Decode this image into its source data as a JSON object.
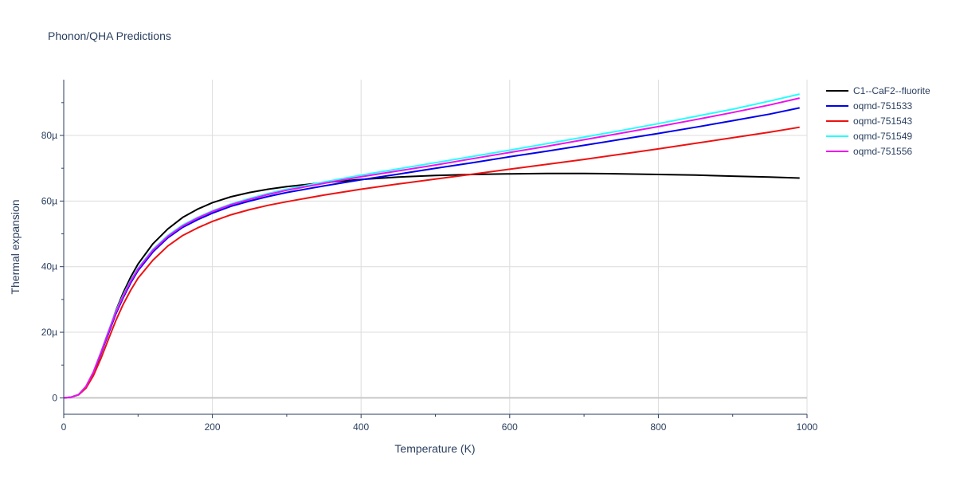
{
  "chart_data": {
    "type": "line",
    "title": "Phonon/QHA Predictions",
    "xlabel": "Temperature (K)",
    "ylabel": "Thermal expansion",
    "xlim": [
      0,
      1000
    ],
    "ylim": [
      -5,
      97
    ],
    "y_unit_note": "values in 1e-6 (µ)",
    "xticks": [
      0,
      200,
      400,
      600,
      800,
      1000
    ],
    "xtick_labels": [
      "0",
      "200",
      "400",
      "600",
      "800",
      "1000"
    ],
    "yticks": [
      0,
      20,
      40,
      60,
      80
    ],
    "ytick_labels": [
      "0",
      "20µ",
      "40µ",
      "60µ",
      "80µ"
    ],
    "grid": true,
    "legend_position": "top-right",
    "series": [
      {
        "name": "C1--CaF2--fluorite",
        "color": "#000000",
        "x": [
          0,
          10,
          20,
          30,
          40,
          50,
          60,
          70,
          80,
          90,
          100,
          120,
          140,
          160,
          180,
          200,
          225,
          250,
          275,
          300,
          350,
          400,
          450,
          500,
          550,
          600,
          650,
          700,
          750,
          800,
          850,
          900,
          950,
          990
        ],
        "y": [
          0,
          0.2,
          1.0,
          3.3,
          7.5,
          13.5,
          20.0,
          26.5,
          32.0,
          36.8,
          40.8,
          47.0,
          51.5,
          55.0,
          57.5,
          59.5,
          61.3,
          62.6,
          63.6,
          64.4,
          65.6,
          66.6,
          67.3,
          67.8,
          68.1,
          68.3,
          68.4,
          68.4,
          68.3,
          68.1,
          67.9,
          67.6,
          67.3,
          67.0
        ]
      },
      {
        "name": "oqmd-751533",
        "color": "#0000ee",
        "x": [
          0,
          10,
          20,
          30,
          40,
          50,
          60,
          70,
          80,
          90,
          100,
          120,
          140,
          160,
          180,
          200,
          225,
          250,
          275,
          300,
          350,
          400,
          450,
          500,
          550,
          600,
          650,
          700,
          750,
          800,
          850,
          900,
          950,
          990
        ],
        "y": [
          0,
          0.2,
          1.0,
          3.5,
          7.8,
          13.5,
          19.5,
          25.5,
          30.5,
          35.0,
          38.8,
          44.5,
          48.8,
          52.0,
          54.3,
          56.3,
          58.4,
          60.0,
          61.4,
          62.6,
          64.6,
          66.5,
          68.2,
          70.0,
          71.7,
          73.5,
          75.2,
          77.0,
          78.8,
          80.6,
          82.5,
          84.5,
          86.5,
          88.4
        ]
      },
      {
        "name": "oqmd-751543",
        "color": "#ee1111",
        "x": [
          0,
          10,
          20,
          30,
          40,
          50,
          60,
          70,
          80,
          90,
          100,
          120,
          140,
          160,
          180,
          200,
          225,
          250,
          275,
          300,
          350,
          400,
          450,
          500,
          550,
          600,
          650,
          700,
          750,
          800,
          850,
          900,
          950,
          990
        ],
        "y": [
          0,
          0.2,
          0.9,
          3.0,
          6.8,
          12.0,
          17.8,
          23.5,
          28.5,
          32.8,
          36.5,
          42.0,
          46.3,
          49.5,
          51.8,
          53.8,
          55.8,
          57.4,
          58.7,
          59.8,
          61.8,
          63.6,
          65.2,
          66.7,
          68.2,
          69.7,
          71.2,
          72.7,
          74.3,
          75.9,
          77.6,
          79.3,
          81.0,
          82.5
        ]
      },
      {
        "name": "oqmd-751549",
        "color": "#22ffff",
        "x": [
          0,
          10,
          20,
          30,
          40,
          50,
          60,
          70,
          80,
          90,
          100,
          120,
          140,
          160,
          180,
          200,
          225,
          250,
          275,
          300,
          350,
          400,
          450,
          500,
          550,
          600,
          650,
          700,
          750,
          800,
          850,
          900,
          950,
          990
        ],
        "y": [
          0,
          0.2,
          1.0,
          3.6,
          8.0,
          14.0,
          20.3,
          26.3,
          31.3,
          35.8,
          39.6,
          45.3,
          49.5,
          52.7,
          55.0,
          57.0,
          59.1,
          60.8,
          62.3,
          63.6,
          65.8,
          67.9,
          69.8,
          71.7,
          73.6,
          75.5,
          77.5,
          79.5,
          81.5,
          83.6,
          85.8,
          88.0,
          90.5,
          92.6
        ]
      },
      {
        "name": "oqmd-751556",
        "color": "#ee11ee",
        "x": [
          0,
          10,
          20,
          30,
          40,
          50,
          60,
          70,
          80,
          90,
          100,
          120,
          140,
          160,
          180,
          200,
          225,
          250,
          275,
          300,
          350,
          400,
          450,
          500,
          550,
          600,
          650,
          700,
          750,
          800,
          850,
          900,
          950,
          990
        ],
        "y": [
          0,
          0.2,
          1.0,
          3.5,
          7.9,
          13.8,
          20.0,
          26.0,
          31.0,
          35.5,
          39.3,
          45.0,
          49.2,
          52.4,
          54.8,
          56.8,
          58.9,
          60.5,
          62.0,
          63.3,
          65.4,
          67.4,
          69.2,
          71.0,
          72.9,
          74.8,
          76.7,
          78.7,
          80.7,
          82.7,
          84.8,
          87.0,
          89.3,
          91.4
        ]
      }
    ]
  }
}
